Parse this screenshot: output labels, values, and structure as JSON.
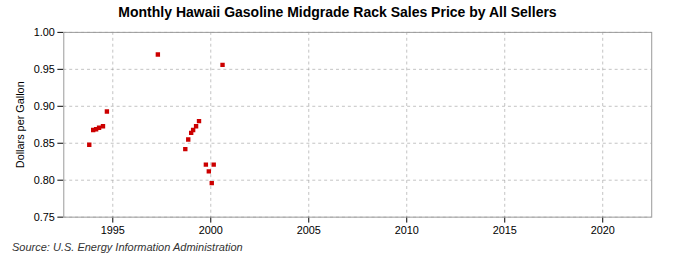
{
  "chart_data": {
    "type": "scatter",
    "title": "Monthly Hawaii Gasoline Midgrade Rack Sales Price by All Sellers",
    "ylabel": "Dollars per Gallon",
    "source": "Source: U.S. Energy Information Administration",
    "color": "#cc0000",
    "marker": "square",
    "grid": true,
    "xlim": [
      1992.5,
      2022.5
    ],
    "ylim": [
      0.75,
      1.0
    ],
    "xticks": [
      1995,
      2000,
      2005,
      2010,
      2015,
      2020
    ],
    "yticks": [
      0.75,
      {
        "value": 0.8,
        "label": "0.80"
      },
      0.85,
      {
        "value": 0.9,
        "label": "0.90"
      },
      0.95,
      {
        "value": 1.0,
        "label": "1.00"
      }
    ],
    "x": [
      1993.8,
      1994.0,
      1994.15,
      1994.3,
      1994.5,
      1994.7,
      1997.3,
      1998.7,
      1998.85,
      1999.0,
      1999.1,
      1999.25,
      1999.4,
      1999.75,
      1999.9,
      2000.05,
      2000.15,
      2000.6
    ],
    "values": [
      0.848,
      0.868,
      0.869,
      0.871,
      0.873,
      0.893,
      0.97,
      0.842,
      0.855,
      0.864,
      0.868,
      0.873,
      0.88,
      0.821,
      0.812,
      0.796,
      0.821,
      0.956
    ]
  }
}
